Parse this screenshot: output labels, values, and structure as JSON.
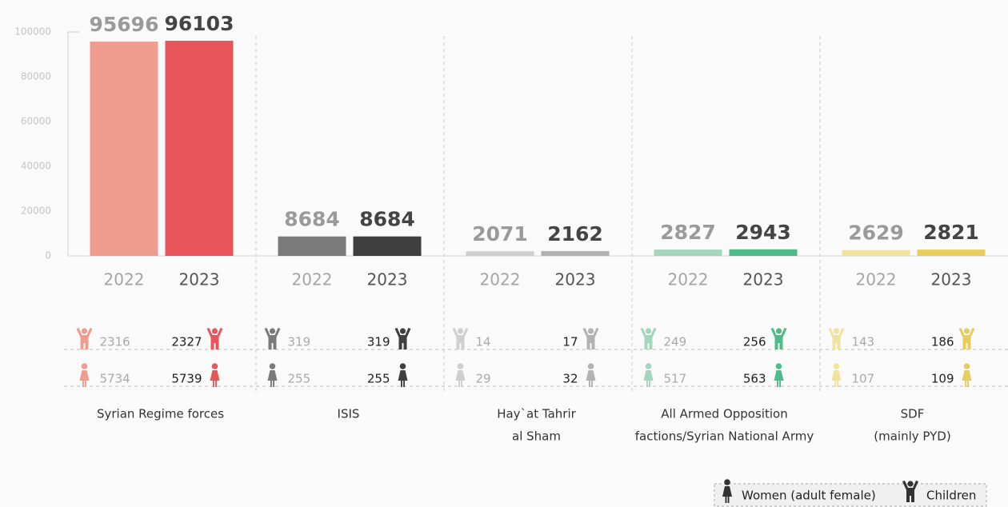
{
  "chart_data": {
    "type": "bar",
    "categories": [
      [
        "Syrian Regime forces"
      ],
      [
        "ISIS"
      ],
      [
        "Hay`at Tahrir",
        "al Sham"
      ],
      [
        "All Armed Opposition",
        "factions/Syrian National Army"
      ],
      [
        "SDF",
        "(mainly PYD)"
      ]
    ],
    "series": [
      {
        "name": "2022",
        "colors": [
          "#ef9b8d",
          "#7a7a7a",
          "#cfcfcf",
          "#a3d6bd",
          "#f1e29c"
        ],
        "values": [
          95696,
          8684,
          2071,
          2827,
          2629
        ],
        "children": [
          2316,
          319,
          14,
          249,
          143
        ],
        "women": [
          5734,
          255,
          29,
          517,
          107
        ]
      },
      {
        "name": "2023",
        "colors": [
          "#e8555a",
          "#3f3f3f",
          "#b2b2b2",
          "#4fbb8b",
          "#e8cd5c"
        ],
        "values": [
          96103,
          8684,
          2162,
          2943,
          2821
        ],
        "children": [
          2327,
          319,
          17,
          256,
          186
        ],
        "women": [
          5739,
          255,
          32,
          563,
          109
        ]
      }
    ],
    "ylim": [
      0,
      100000
    ],
    "yticks": [
      0,
      20000,
      40000,
      60000,
      80000,
      100000
    ],
    "legend": [
      "Women (adult female)",
      "Children"
    ]
  }
}
